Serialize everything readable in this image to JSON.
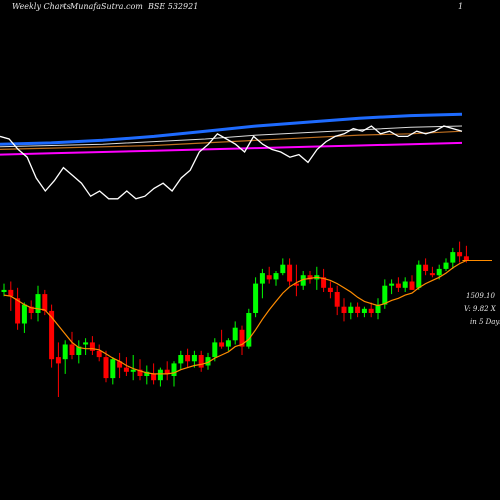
{
  "header": {
    "left": "Weekly Charts",
    "center": "MunafaSutra.com",
    "symbol": "BSE 532921",
    "right": "1"
  },
  "price_panel": {
    "last_price_label": "1509.10",
    "volume_label": "V: 9.82  X",
    "days_label": "in 5 Days"
  },
  "colors": {
    "background": "#000000",
    "up_candle": "#00ff00",
    "down_candle": "#ff0000",
    "moving_average": "#ff8c00",
    "indicator_line": "#ffffff",
    "ma_blue": "#1e6bff",
    "ma_white": "#dddddd",
    "ma_orange": "#c07020",
    "ma_magenta": "#ff00ff"
  },
  "chart_data": {
    "type": "candlestick",
    "title": "",
    "candles": [
      {
        "o": 0.0,
        "h": 0.8,
        "l": -0.4,
        "c": 0.2
      },
      {
        "o": 0.2,
        "h": 1.0,
        "l": -1.8,
        "c": -0.4
      },
      {
        "o": -0.6,
        "h": 0.4,
        "l": -3.6,
        "c": -3.0
      },
      {
        "o": -3.0,
        "h": -1.0,
        "l": -3.9,
        "c": -1.2
      },
      {
        "o": -1.4,
        "h": -0.8,
        "l": -2.6,
        "c": -2.0
      },
      {
        "o": -2.0,
        "h": 0.6,
        "l": -2.8,
        "c": -0.2
      },
      {
        "o": -0.2,
        "h": 0.2,
        "l": -2.2,
        "c": -1.8
      },
      {
        "o": -1.8,
        "h": -1.2,
        "l": -7.2,
        "c": -6.4
      },
      {
        "o": -6.2,
        "h": -4.8,
        "l": -10.0,
        "c": -6.8
      },
      {
        "o": -6.4,
        "h": -4.6,
        "l": -7.8,
        "c": -5.0
      },
      {
        "o": -5.0,
        "h": -3.8,
        "l": -6.4,
        "c": -6.0
      },
      {
        "o": -6.0,
        "h": -4.6,
        "l": -6.8,
        "c": -5.2
      },
      {
        "o": -5.0,
        "h": -4.4,
        "l": -6.0,
        "c": -4.8
      },
      {
        "o": -4.8,
        "h": -4.2,
        "l": -6.0,
        "c": -5.6
      },
      {
        "o": -5.6,
        "h": -5.0,
        "l": -6.6,
        "c": -6.2
      },
      {
        "o": -6.2,
        "h": -5.6,
        "l": -8.6,
        "c": -8.2
      },
      {
        "o": -8.2,
        "h": -6.2,
        "l": -8.8,
        "c": -6.4
      },
      {
        "o": -6.6,
        "h": -5.8,
        "l": -8.2,
        "c": -7.2
      },
      {
        "o": -7.2,
        "h": -6.2,
        "l": -8.0,
        "c": -7.6
      },
      {
        "o": -7.6,
        "h": -6.0,
        "l": -8.4,
        "c": -7.4
      },
      {
        "o": -7.4,
        "h": -6.4,
        "l": -8.4,
        "c": -8.0
      },
      {
        "o": -8.0,
        "h": -7.0,
        "l": -8.8,
        "c": -7.6
      },
      {
        "o": -7.8,
        "h": -6.8,
        "l": -8.8,
        "c": -8.4
      },
      {
        "o": -8.4,
        "h": -7.2,
        "l": -9.0,
        "c": -7.4
      },
      {
        "o": -7.4,
        "h": -6.6,
        "l": -8.4,
        "c": -7.8
      },
      {
        "o": -8.0,
        "h": -6.6,
        "l": -9.0,
        "c": -6.8
      },
      {
        "o": -6.8,
        "h": -5.6,
        "l": -7.4,
        "c": -6.0
      },
      {
        "o": -6.0,
        "h": -5.4,
        "l": -7.2,
        "c": -6.6
      },
      {
        "o": -6.6,
        "h": -5.6,
        "l": -7.2,
        "c": -6.0
      },
      {
        "o": -6.0,
        "h": -5.6,
        "l": -7.6,
        "c": -7.2
      },
      {
        "o": -7.0,
        "h": -5.8,
        "l": -7.4,
        "c": -6.2
      },
      {
        "o": -6.2,
        "h": -4.4,
        "l": -6.6,
        "c": -4.8
      },
      {
        "o": -4.8,
        "h": -3.6,
        "l": -5.4,
        "c": -5.2
      },
      {
        "o": -5.2,
        "h": -4.4,
        "l": -5.6,
        "c": -4.6
      },
      {
        "o": -4.6,
        "h": -2.8,
        "l": -5.0,
        "c": -3.4
      },
      {
        "o": -3.6,
        "h": -3.2,
        "l": -6.0,
        "c": -5.2
      },
      {
        "o": -5.2,
        "h": -1.6,
        "l": -5.4,
        "c": -2.0
      },
      {
        "o": -2.0,
        "h": 1.4,
        "l": -2.4,
        "c": 0.8
      },
      {
        "o": 0.8,
        "h": 2.2,
        "l": -0.6,
        "c": 1.8
      },
      {
        "o": 1.6,
        "h": 2.4,
        "l": 0.8,
        "c": 1.2
      },
      {
        "o": 1.2,
        "h": 2.0,
        "l": 0.6,
        "c": 1.8
      },
      {
        "o": 1.8,
        "h": 3.2,
        "l": 1.6,
        "c": 2.6
      },
      {
        "o": 2.6,
        "h": 3.2,
        "l": 0.6,
        "c": 1.0
      },
      {
        "o": 0.8,
        "h": 2.6,
        "l": -0.4,
        "c": 0.6
      },
      {
        "o": 0.6,
        "h": 2.0,
        "l": 0.2,
        "c": 1.6
      },
      {
        "o": 1.6,
        "h": 2.0,
        "l": 0.8,
        "c": 1.2
      },
      {
        "o": 1.2,
        "h": 2.4,
        "l": 0.2,
        "c": 1.6
      },
      {
        "o": 1.4,
        "h": 2.2,
        "l": 0.0,
        "c": 0.4
      },
      {
        "o": 0.4,
        "h": 1.0,
        "l": -0.6,
        "c": 0.0
      },
      {
        "o": 0.0,
        "h": 0.6,
        "l": -2.2,
        "c": -1.4
      },
      {
        "o": -1.4,
        "h": -0.6,
        "l": -2.8,
        "c": -2.0
      },
      {
        "o": -2.0,
        "h": -1.0,
        "l": -2.6,
        "c": -1.4
      },
      {
        "o": -1.4,
        "h": -1.0,
        "l": -2.4,
        "c": -2.0
      },
      {
        "o": -2.0,
        "h": -1.4,
        "l": -2.4,
        "c": -1.6
      },
      {
        "o": -1.6,
        "h": -1.0,
        "l": -2.4,
        "c": -2.0
      },
      {
        "o": -2.0,
        "h": -0.6,
        "l": -2.6,
        "c": -1.2
      },
      {
        "o": -1.2,
        "h": 1.2,
        "l": -1.6,
        "c": 0.6
      },
      {
        "o": 0.6,
        "h": 1.2,
        "l": -0.2,
        "c": 0.8
      },
      {
        "o": 0.8,
        "h": 1.4,
        "l": 0.0,
        "c": 0.4
      },
      {
        "o": 0.4,
        "h": 1.4,
        "l": 0.0,
        "c": 1.0
      },
      {
        "o": 1.0,
        "h": 1.6,
        "l": 0.2,
        "c": 0.2
      },
      {
        "o": 0.4,
        "h": 3.0,
        "l": 0.2,
        "c": 2.6
      },
      {
        "o": 2.6,
        "h": 3.2,
        "l": 1.6,
        "c": 2.0
      },
      {
        "o": 1.8,
        "h": 2.4,
        "l": 1.4,
        "c": 1.6
      },
      {
        "o": 1.6,
        "h": 2.6,
        "l": 1.2,
        "c": 2.2
      },
      {
        "o": 2.2,
        "h": 3.2,
        "l": 2.0,
        "c": 2.8
      },
      {
        "o": 2.8,
        "h": 4.2,
        "l": 2.2,
        "c": 3.8
      },
      {
        "o": 3.8,
        "h": 4.8,
        "l": 2.8,
        "c": 3.4
      },
      {
        "o": 3.4,
        "h": 4.4,
        "l": 2.8,
        "c": 3.0
      }
    ],
    "moving_average": [
      -0.3,
      -0.4,
      -0.8,
      -1.2,
      -1.5,
      -1.6,
      -1.7,
      -2.4,
      -3.2,
      -4.0,
      -4.8,
      -5.3,
      -5.4,
      -5.4,
      -5.5,
      -5.9,
      -6.3,
      -6.6,
      -7.0,
      -7.3,
      -7.5,
      -7.7,
      -7.8,
      -7.8,
      -7.8,
      -7.7,
      -7.4,
      -7.2,
      -7.0,
      -6.9,
      -6.7,
      -6.3,
      -6.0,
      -5.7,
      -5.2,
      -5.0,
      -4.5,
      -3.6,
      -2.6,
      -1.7,
      -0.9,
      -0.1,
      0.5,
      0.9,
      1.2,
      1.3,
      1.4,
      1.3,
      1.1,
      0.8,
      0.4,
      0.0,
      -0.5,
      -0.9,
      -1.1,
      -1.3,
      -1.1,
      -0.8,
      -0.6,
      -0.3,
      -0.1,
      0.4,
      0.8,
      1.1,
      1.4,
      1.8,
      2.3,
      2.7,
      3.0
    ],
    "last_price_marker": 3.0,
    "indicator": {
      "line": [
        1.2,
        1.0,
        0.2,
        -0.4,
        -2.0,
        -3.0,
        -2.2,
        -1.2,
        -1.8,
        -2.4,
        -3.4,
        -3.0,
        -3.6,
        -3.6,
        -3.0,
        -3.6,
        -3.4,
        -2.8,
        -2.4,
        -3.0,
        -2.0,
        -1.4,
        0.0,
        0.6,
        1.4,
        1.0,
        0.6,
        0.0,
        1.2,
        0.6,
        0.2,
        0.0,
        -0.4,
        -0.2,
        -0.8,
        0.2,
        0.8,
        1.2,
        1.4,
        1.8,
        1.6,
        2.0,
        1.4,
        1.6,
        1.2,
        1.2,
        1.6,
        1.4,
        1.6,
        2.0,
        1.8,
        1.6
      ],
      "ma_blue": [
        0.6,
        0.7,
        0.9,
        1.2,
        1.6,
        2.0,
        2.3,
        2.6,
        2.8,
        2.9
      ],
      "ma_white": [
        0.4,
        0.5,
        0.6,
        0.8,
        1.0,
        1.3,
        1.5,
        1.7,
        1.9,
        2.0
      ],
      "ma_orange": [
        0.2,
        0.3,
        0.4,
        0.5,
        0.7,
        0.9,
        1.1,
        1.3,
        1.4,
        1.6
      ],
      "ma_magenta": [
        -0.2,
        -0.1,
        0.0,
        0.1,
        0.2,
        0.3,
        0.4,
        0.5,
        0.6,
        0.7
      ]
    }
  }
}
